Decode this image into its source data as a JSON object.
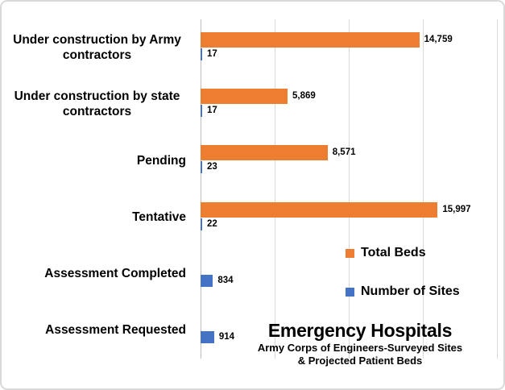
{
  "chart_data": {
    "type": "bar",
    "orientation": "horizontal",
    "title": "Emergency Hospitals",
    "subtitle_line1": "Army Corps of Engineers-Surveyed Sites",
    "subtitle_line2": "& Projected Patient Beds",
    "categories": [
      "Under construction by Army contractors",
      "Under construction by state contractors",
      "Pending",
      "Tentative",
      "Assessment Completed",
      "Assessment Requested"
    ],
    "series": [
      {
        "name": "Total Beds",
        "color": "#ED7D31",
        "values": [
          14759,
          5869,
          8571,
          15997,
          null,
          null
        ],
        "data_labels": [
          "14,759",
          "5,869",
          "8,571",
          "15,997",
          null,
          null
        ]
      },
      {
        "name": "Number of Sites",
        "color": "#4472C4",
        "values": [
          17,
          17,
          23,
          22,
          834,
          914
        ],
        "data_labels": [
          "17",
          "17",
          "23",
          "22",
          "834",
          "914"
        ]
      }
    ],
    "value_axis": {
      "min": 0,
      "max": 20000,
      "gridline_interval": 5000,
      "tick_labels_visible": false
    },
    "grid": "vertical-only",
    "legend_position": "overlay-right",
    "legend": [
      "Total Beds",
      "Number of Sites"
    ]
  },
  "colors": {
    "grid": "#D9D9D9",
    "axis": "#BFBFBF",
    "text": "#000000",
    "frame_border": "#D9D9D9",
    "background": "#FFFFFF"
  }
}
